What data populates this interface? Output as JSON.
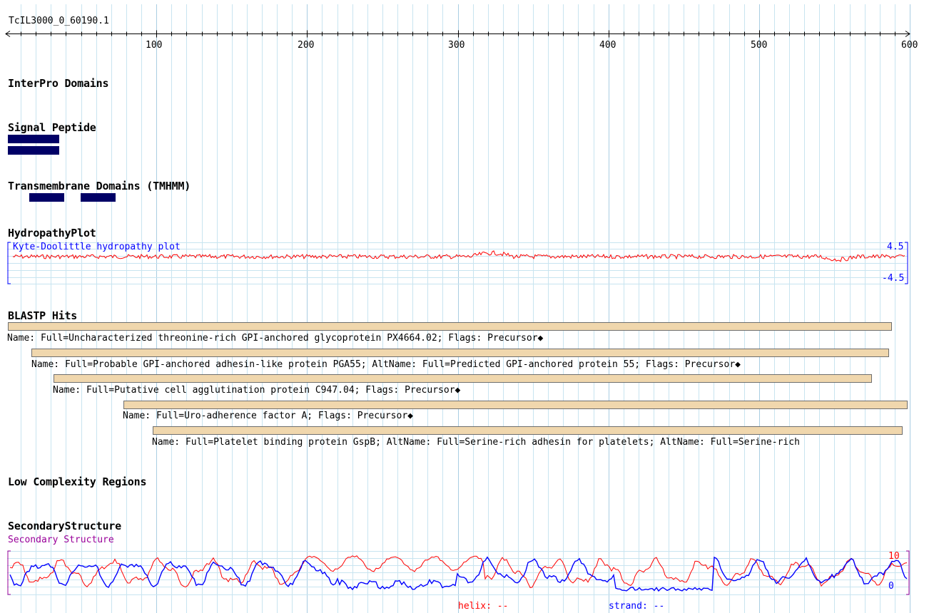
{
  "protein_id": "TcIL3000_0_60190.1",
  "ruler": {
    "ticks": [
      "100",
      "200",
      "300",
      "400",
      "500",
      "600"
    ]
  },
  "sections": {
    "interpro": "InterPro Domains",
    "signal_peptide": "Signal Peptide",
    "transmembrane": "Transmembrane Domains (TMHMM)",
    "hydropathy": "HydropathyPlot",
    "blastp": "BLASTP Hits",
    "low_complexity": "Low Complexity Regions",
    "secondary_structure": "SecondaryStructure"
  },
  "hydropathy_plot": {
    "label": "Kyte-Doolittle hydropathy plot",
    "max_label": "4.5",
    "min_label": "-4.5",
    "line_color": "#ff0000"
  },
  "blastp_hits": [
    {
      "name": "Name: Full=Uncharacterized threonine-rich GPI-anchored glycoprotein PX4664.02; Flags: Precursor◆"
    },
    {
      "name": "Name: Full=Probable GPI-anchored adhesin-like protein PGA55; AltName: Full=Predicted GPI-anchored protein 55; Flags: Precursor◆"
    },
    {
      "name": "Name: Full=Putative cell agglutination protein C947.04; Flags: Precursor◆"
    },
    {
      "name": "Name: Full=Uro-adherence factor A; Flags: Precursor◆"
    },
    {
      "name": "Name: Full=Platelet binding protein GspB; AltName: Full=Serine-rich adhesin for platelets; AltName: Full=Serine-rich"
    }
  ],
  "secondary_structure": {
    "label": "Secondary Structure",
    "max_label": "10",
    "min_label": "0",
    "helix_label": "helix: --",
    "strand_label": "strand: --",
    "helix_color": "#ff0000",
    "strand_color": "#0000ff"
  },
  "colors": {
    "grid_line": "#c8e4f0",
    "feature_bar": "#000066",
    "hit_bar": "#f0d7ad",
    "plot_label": "#0000ff",
    "secondary_label": "#990099"
  }
}
